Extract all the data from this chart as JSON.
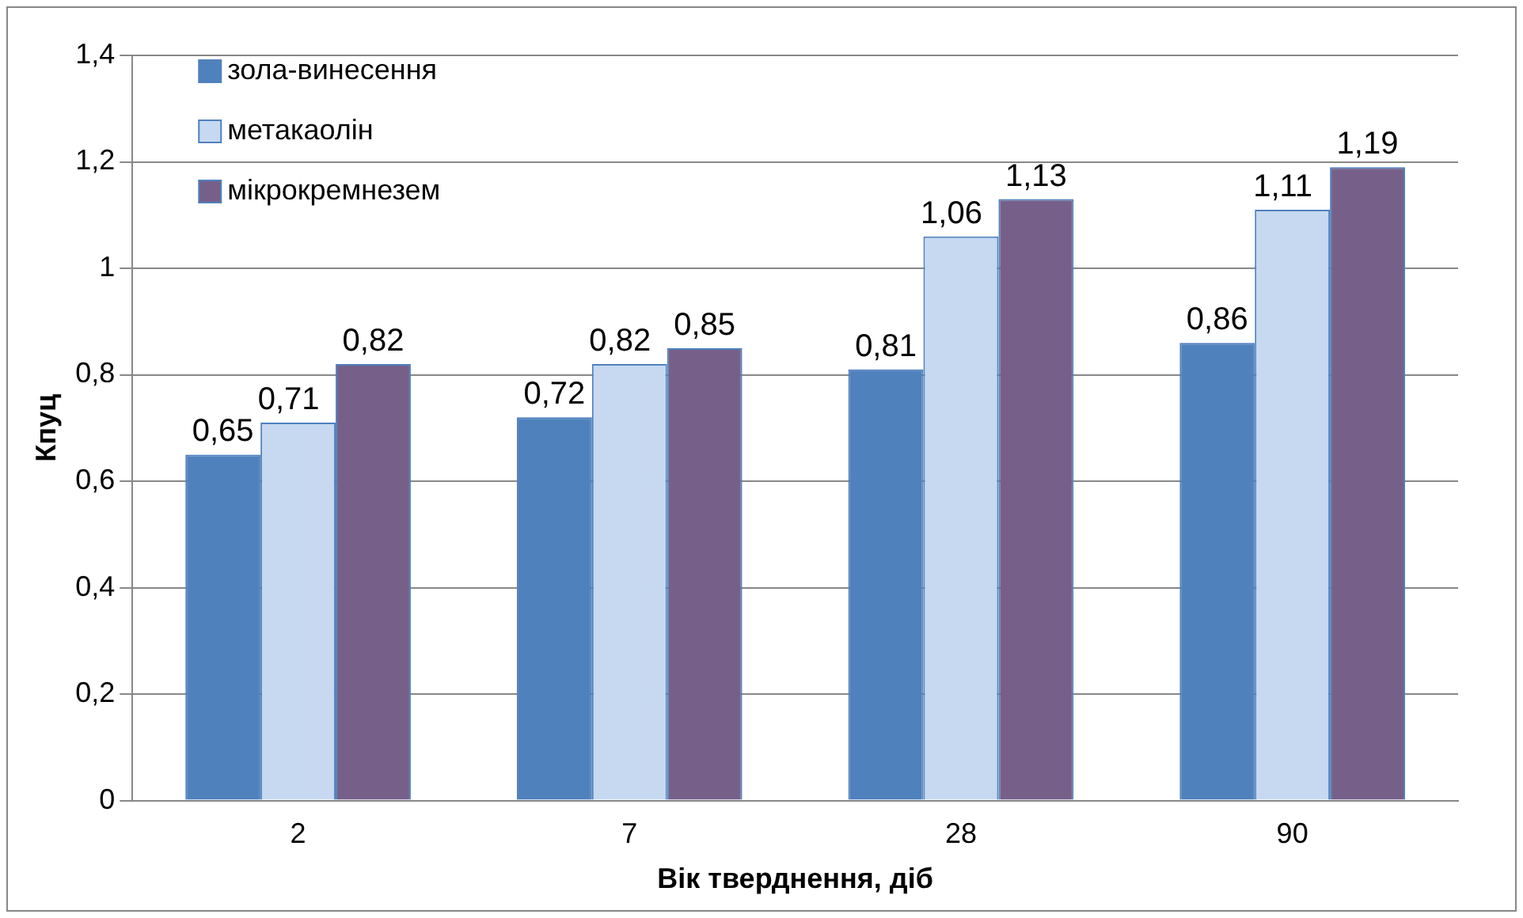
{
  "chart_data": {
    "type": "bar",
    "xlabel": "Вік тверднення, діб",
    "ylabel": "Кпуц",
    "categories": [
      "2",
      "7",
      "28",
      "90"
    ],
    "series": [
      {
        "name": "зола-винесення",
        "color": "#4f81bd",
        "values": [
          0.65,
          0.72,
          0.81,
          0.86
        ],
        "value_labels": [
          "0,65",
          "0,72",
          "0,81",
          "0,86"
        ]
      },
      {
        "name": "метакаолін",
        "color": "#c6d9f1",
        "values": [
          0.71,
          0.82,
          1.06,
          1.11
        ],
        "value_labels": [
          "0,71",
          "0,82",
          "1,06",
          "1,11"
        ]
      },
      {
        "name": "мікрокремнезем",
        "color": "#76608a",
        "values": [
          0.82,
          0.85,
          1.13,
          1.19
        ],
        "value_labels": [
          "0,82",
          "0,85",
          "1,13",
          "1,19"
        ]
      }
    ],
    "ylim": [
      0,
      1.4
    ],
    "yticks": [
      0,
      {
        "value": 0.2,
        "label": "0,2"
      },
      {
        "value": 0.4,
        "label": "0,4"
      },
      {
        "value": 0.6,
        "label": "0,6"
      },
      {
        "value": 0.8,
        "label": "0,8"
      },
      1,
      {
        "value": 1.2,
        "label": "1,2"
      },
      {
        "value": 1.4,
        "label": "1,4"
      }
    ],
    "grid": "y",
    "legend": "top left"
  }
}
